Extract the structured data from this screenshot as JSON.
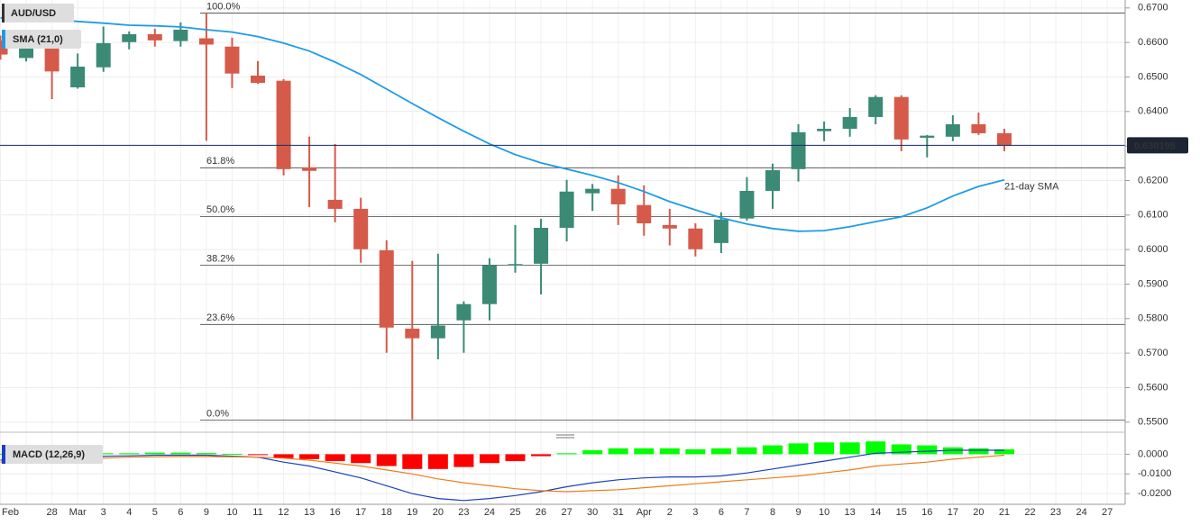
{
  "chart_data": [
    {
      "type": "candlestick",
      "title": "AUD/USD",
      "categories": [
        "Feb",
        null,
        "28",
        "Mar",
        "3",
        "4",
        "5",
        "6",
        "9",
        "10",
        "11",
        "12",
        "13",
        "16",
        "17",
        "18",
        "19",
        "20",
        "23",
        "24",
        "25",
        "26",
        "27",
        "30",
        "31",
        "Apr",
        "2",
        "3",
        "6",
        "7",
        "8",
        "9",
        "10",
        "13",
        "14",
        "15",
        "16",
        "17",
        "20",
        "21",
        "22",
        "23",
        "24",
        "27"
      ],
      "open": [
        0.6605,
        0.6555,
        0.659,
        0.647,
        0.6528,
        0.6601,
        0.6624,
        0.6604,
        0.6612,
        0.6588,
        0.6504,
        0.6489,
        0.6238,
        0.6144,
        0.6118,
        0.5998,
        0.5771,
        0.5743,
        0.5795,
        0.5842,
        0.5955,
        0.5959,
        0.6063,
        0.6163,
        0.6176,
        0.6129,
        0.6071,
        0.6061,
        0.6019,
        0.609,
        0.617,
        0.6233,
        0.6343,
        0.635,
        0.6384,
        0.6442,
        0.6324,
        0.6327,
        0.6363,
        0.6337,
        null,
        null,
        null,
        null
      ],
      "high": [
        0.662,
        0.6615,
        0.6605,
        0.6568,
        0.6646,
        0.6632,
        0.664,
        0.6658,
        0.6685,
        0.6614,
        0.6546,
        0.6494,
        0.6327,
        0.6306,
        0.615,
        0.6027,
        0.5967,
        0.5988,
        0.585,
        0.5975,
        0.6071,
        0.6089,
        0.6202,
        0.619,
        0.6215,
        0.6186,
        0.6118,
        0.6076,
        0.6108,
        0.621,
        0.6249,
        0.6363,
        0.6371,
        0.641,
        0.6447,
        0.6447,
        0.6332,
        0.6389,
        0.6397,
        0.635,
        null,
        null,
        null,
        null
      ],
      "low": [
        0.655,
        0.6545,
        0.6436,
        0.6466,
        0.6515,
        0.658,
        0.6588,
        0.6588,
        0.6315,
        0.6468,
        0.648,
        0.6215,
        0.6123,
        0.6079,
        0.5962,
        0.5701,
        0.5508,
        0.5682,
        0.5701,
        0.5795,
        0.5933,
        0.587,
        0.6024,
        0.6112,
        0.6071,
        0.604,
        0.6012,
        0.598,
        0.599,
        0.6084,
        0.6118,
        0.6197,
        0.6314,
        0.6327,
        0.6363,
        0.6285,
        0.6267,
        0.6314,
        0.6332,
        0.6285,
        null,
        null,
        null,
        null
      ],
      "close": [
        0.6565,
        0.6595,
        0.6516,
        0.653,
        0.6598,
        0.6624,
        0.6606,
        0.6637,
        0.6594,
        0.651,
        0.6483,
        0.6233,
        0.6228,
        0.6118,
        0.6001,
        0.5774,
        0.5743,
        0.578,
        0.5842,
        0.5954,
        0.5958,
        0.6063,
        0.6168,
        0.6176,
        0.6131,
        0.6076,
        0.6061,
        0.6001,
        0.6087,
        0.617,
        0.623,
        0.634,
        0.635,
        0.6384,
        0.6442,
        0.6319,
        0.633,
        0.6363,
        0.6337,
        0.6301,
        null,
        null,
        null,
        null
      ],
      "up_color": "#3a8a76",
      "down_color": "#d65a4a",
      "series": [
        {
          "name": "SMA (21,0)",
          "color": "#1e9be6",
          "values": [
            0.6671,
            0.6669,
            0.6666,
            0.6661,
            0.6656,
            0.665,
            0.6648,
            0.6645,
            0.6637,
            0.663,
            0.6617,
            0.6598,
            0.6575,
            0.6543,
            0.6507,
            0.6465,
            0.6423,
            0.6382,
            0.6343,
            0.6306,
            0.6275,
            0.6251,
            0.6233,
            0.6215,
            0.6194,
            0.6168,
            0.6139,
            0.6115,
            0.6092,
            0.6074,
            0.6061,
            0.6053,
            0.6055,
            0.6066,
            0.6081,
            0.6095,
            0.6121,
            0.6155,
            0.6183,
            0.6202,
            null,
            null,
            null,
            null
          ]
        }
      ],
      "annotation": "21-day SMA",
      "levels": [
        {
          "value": 0.6685,
          "label": "100.0%"
        },
        {
          "value": 0.6237,
          "label": "61.8%"
        },
        {
          "value": 0.6096,
          "label": "50.0%"
        },
        {
          "value": 0.5955,
          "label": "38.2%"
        },
        {
          "value": 0.5783,
          "label": "23.6%"
        },
        {
          "value": 0.5506,
          "label": "0.0%"
        }
      ],
      "last_price": 0.630195,
      "ylim": [
        0.5476,
        0.6723
      ],
      "yticks": [
        {
          "value": 0.55,
          "label": "0.5500"
        },
        {
          "value": 0.56,
          "label": "0.5600"
        },
        {
          "value": 0.57,
          "label": "0.5700"
        },
        {
          "value": 0.58,
          "label": "0.5800"
        },
        {
          "value": 0.59,
          "label": "0.5900"
        },
        {
          "value": 0.6,
          "label": "0.6000"
        },
        {
          "value": 0.61,
          "label": "0.6100"
        },
        {
          "value": 0.62,
          "label": "0.6200"
        },
        {
          "value": 0.63,
          "label": "0.6300"
        },
        {
          "value": 0.64,
          "label": "0.6400"
        },
        {
          "value": 0.65,
          "label": "0.6500"
        },
        {
          "value": 0.66,
          "label": "0.6600"
        },
        {
          "value": 0.67,
          "label": "0.6700"
        }
      ],
      "grid": true
    },
    {
      "type": "macd",
      "title": "MACD (12,26,9)",
      "histogram": {
        "up_color": "#00ff00",
        "down_color": "#ff0000",
        "values": [
          0.0002,
          0.0002,
          0.0002,
          0.0003,
          0.0005,
          0.0005,
          0.0008,
          0.0008,
          0.0006,
          0.0002,
          -0.0001,
          -0.002,
          -0.0025,
          -0.0035,
          -0.0045,
          -0.006,
          -0.0075,
          -0.0075,
          -0.0065,
          -0.0045,
          -0.0035,
          -0.001,
          0.0005,
          0.002,
          0.003,
          0.003,
          0.003,
          0.0025,
          0.003,
          0.0035,
          0.0045,
          0.0055,
          0.006,
          0.006,
          0.0065,
          0.005,
          0.0045,
          0.0035,
          0.003,
          0.0025,
          null,
          null,
          null,
          null
        ]
      },
      "series": [
        {
          "color": "#1a3fc4",
          "values": [
            -0.003,
            -0.002,
            -0.002,
            -0.0015,
            -0.001,
            -0.0008,
            -0.0005,
            -0.0005,
            -0.0005,
            -0.001,
            -0.0015,
            -0.004,
            -0.006,
            -0.009,
            -0.012,
            -0.016,
            -0.02,
            -0.0225,
            -0.0235,
            -0.0225,
            -0.021,
            -0.019,
            -0.0165,
            -0.0145,
            -0.013,
            -0.012,
            -0.0115,
            -0.0115,
            -0.011,
            -0.0095,
            -0.0075,
            -0.0055,
            -0.0035,
            -0.0015,
            0.0005,
            0.001,
            0.0015,
            0.002,
            0.002,
            0.002,
            null,
            null,
            null,
            null
          ]
        },
        {
          "color": "#f07c1a",
          "values": [
            -0.004,
            -0.0035,
            -0.003,
            -0.0025,
            -0.002,
            -0.0015,
            -0.0013,
            -0.0012,
            -0.0012,
            -0.0013,
            -0.0015,
            -0.002,
            -0.003,
            -0.0045,
            -0.006,
            -0.008,
            -0.01,
            -0.0125,
            -0.0145,
            -0.016,
            -0.0175,
            -0.0185,
            -0.019,
            -0.0185,
            -0.018,
            -0.017,
            -0.016,
            -0.015,
            -0.014,
            -0.013,
            -0.012,
            -0.011,
            -0.0095,
            -0.008,
            -0.006,
            -0.005,
            -0.004,
            -0.0025,
            -0.0015,
            -0.0005,
            null,
            null,
            null,
            null
          ]
        }
      ],
      "ylim": [
        -0.0245,
        0.0075
      ],
      "yticks": [
        {
          "value": 0,
          "label": "0.0000"
        },
        {
          "value": -0.01,
          "label": "-0.0100"
        },
        {
          "value": -0.02,
          "label": "-0.0200"
        }
      ],
      "grid": true
    }
  ]
}
